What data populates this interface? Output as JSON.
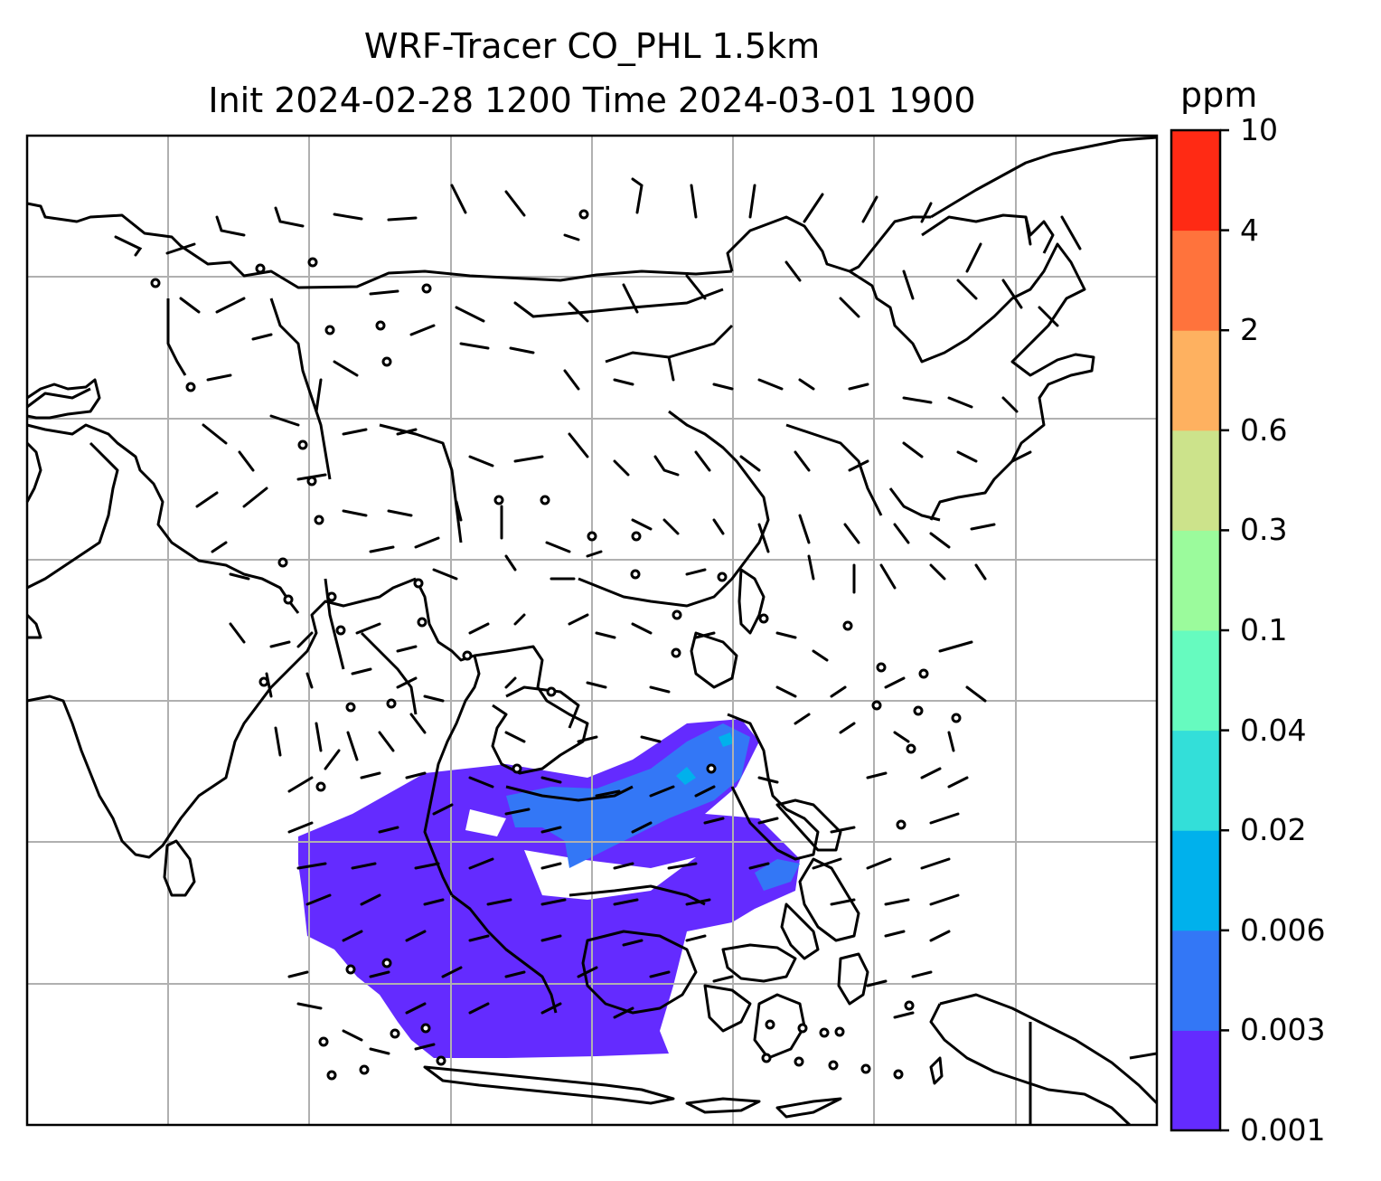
{
  "title": {
    "line1": "WRF-Tracer CO_PHL 1.5km",
    "line2": "Init 2024-02-28 1200 Time 2024-03-01 1900"
  },
  "colorbar": {
    "unit": "ppm",
    "levels": [
      "0.001",
      "0.003",
      "0.006",
      "0.02",
      "0.04",
      "0.1",
      "0.3",
      "0.6",
      "2",
      "4",
      "10"
    ],
    "colors": [
      "#642bff",
      "#3377f6",
      "#00b1ec",
      "#33dfd9",
      "#66fbbf",
      "#9bfb9c",
      "#cce38b",
      "#feb160",
      "#ff733c",
      "#ff2a14"
    ]
  },
  "map": {
    "coastline_color": "#000000",
    "gridline_color": "#b0b0b0",
    "shading_layers": [
      "0.001",
      "0.003",
      "0.006"
    ],
    "wind_barbs": "black barbs and calm circles across domain"
  }
}
